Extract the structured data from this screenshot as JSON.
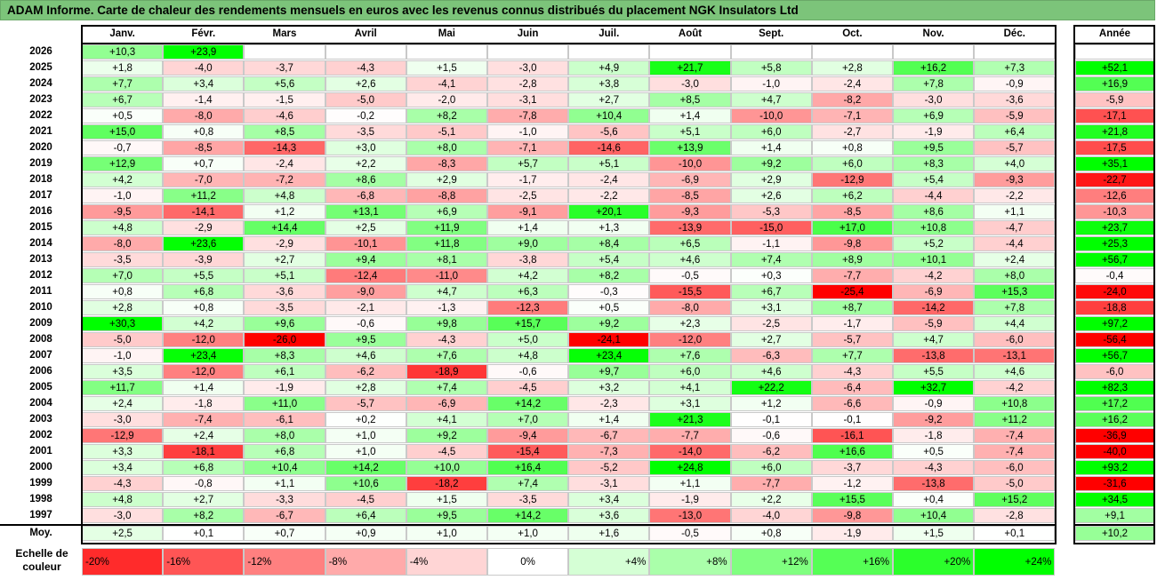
{
  "title": "ADAM Informe. Carte de chaleur des rendements mensuels en euros avec les revenus connus distribués du placement NGK Insulators Ltd",
  "chart_data": {
    "type": "heatmap",
    "months": [
      "Janv.",
      "Févr.",
      "Mars",
      "Avril",
      "Mai",
      "Juin",
      "Juil.",
      "Août",
      "Sept.",
      "Oct.",
      "Nov.",
      "Déc."
    ],
    "year_header": "Année",
    "unit": "%",
    "rows": [
      {
        "year": "2026",
        "months": [
          "+10,3",
          "+23,9",
          null,
          null,
          null,
          null,
          null,
          null,
          null,
          null,
          null,
          null
        ],
        "annual": null
      },
      {
        "year": "2025",
        "months": [
          "+1,8",
          "-4,0",
          "-3,7",
          "-4,3",
          "+1,5",
          "-3,0",
          "+4,9",
          "+21,7",
          "+5,8",
          "+2,8",
          "+16,2",
          "+7,3"
        ],
        "annual": "+52,1"
      },
      {
        "year": "2024",
        "months": [
          "+7,7",
          "+3,4",
          "+5,6",
          "+2,6",
          "-4,1",
          "-2,8",
          "+3,8",
          "-3,0",
          "-1,0",
          "-2,4",
          "+7,8",
          "-0,9"
        ],
        "annual": "+16,9"
      },
      {
        "year": "2023",
        "months": [
          "+6,7",
          "-1,4",
          "-1,5",
          "-5,0",
          "-2,0",
          "-3,1",
          "+2,7",
          "+8,5",
          "+4,7",
          "-8,2",
          "-3,0",
          "-3,6"
        ],
        "annual": "-5,9"
      },
      {
        "year": "2022",
        "months": [
          "+0,5",
          "-8,0",
          "-4,6",
          "-0,2",
          "+8,2",
          "-7,8",
          "+10,4",
          "+1,4",
          "-10,0",
          "-7,1",
          "+6,9",
          "-5,9"
        ],
        "annual": "-17,1"
      },
      {
        "year": "2021",
        "months": [
          "+15,0",
          "+0,8",
          "+8,5",
          "-3,5",
          "-5,1",
          "-1,0",
          "-5,6",
          "+5,1",
          "+6,0",
          "-2,7",
          "-1,9",
          "+6,4"
        ],
        "annual": "+21,8"
      },
      {
        "year": "2020",
        "months": [
          "-0,7",
          "-8,5",
          "-14,3",
          "+3,0",
          "+8,0",
          "-7,1",
          "-14,6",
          "+13,9",
          "+1,4",
          "+0,8",
          "+9,5",
          "-5,7"
        ],
        "annual": "-17,5"
      },
      {
        "year": "2019",
        "months": [
          "+12,9",
          "+0,7",
          "-2,4",
          "+2,2",
          "-8,3",
          "+5,7",
          "+5,1",
          "-10,0",
          "+9,2",
          "+6,0",
          "+8,3",
          "+4,0"
        ],
        "annual": "+35,1"
      },
      {
        "year": "2018",
        "months": [
          "+4,2",
          "-7,0",
          "-7,2",
          "+8,6",
          "+2,9",
          "-1,7",
          "-2,4",
          "-6,9",
          "+2,9",
          "-12,9",
          "+5,4",
          "-9,3"
        ],
        "annual": "-22,7"
      },
      {
        "year": "2017",
        "months": [
          "-1,0",
          "+11,2",
          "+4,8",
          "-6,8",
          "-8,8",
          "-2,5",
          "-2,2",
          "-8,5",
          "+2,6",
          "+6,2",
          "-4,4",
          "-2,2"
        ],
        "annual": "-12,6"
      },
      {
        "year": "2016",
        "months": [
          "-9,5",
          "-14,1",
          "+1,2",
          "+13,1",
          "+6,9",
          "-9,1",
          "+20,1",
          "-9,3",
          "-5,3",
          "-8,5",
          "+8,6",
          "+1,1"
        ],
        "annual": "-10,3"
      },
      {
        "year": "2015",
        "months": [
          "+4,8",
          "-2,9",
          "+14,4",
          "+2,5",
          "+11,9",
          "+1,4",
          "+1,3",
          "-13,9",
          "-15,0",
          "+17,0",
          "+10,8",
          "-4,7"
        ],
        "annual": "+23,7"
      },
      {
        "year": "2014",
        "months": [
          "-8,0",
          "+23,6",
          "-2,9",
          "-10,1",
          "+11,8",
          "+9,0",
          "+8,4",
          "+6,5",
          "-1,1",
          "-9,8",
          "+5,2",
          "-4,4"
        ],
        "annual": "+25,3"
      },
      {
        "year": "2013",
        "months": [
          "-3,5",
          "-3,9",
          "+2,7",
          "+9,4",
          "+8,1",
          "-3,8",
          "+5,4",
          "+4,6",
          "+7,4",
          "+8,9",
          "+10,1",
          "+2,4"
        ],
        "annual": "+56,7"
      },
      {
        "year": "2012",
        "months": [
          "+7,0",
          "+5,5",
          "+5,1",
          "-12,4",
          "-11,0",
          "+4,2",
          "+8,2",
          "-0,5",
          "+0,3",
          "-7,7",
          "-4,2",
          "+8,0"
        ],
        "annual": "-0,4"
      },
      {
        "year": "2011",
        "months": [
          "+0,8",
          "+6,8",
          "-3,6",
          "-9,0",
          "+4,7",
          "+6,3",
          "-0,3",
          "-15,5",
          "+6,7",
          "-25,4",
          "-6,9",
          "+15,3"
        ],
        "annual": "-24,0"
      },
      {
        "year": "2010",
        "months": [
          "+2,8",
          "+0,8",
          "-3,5",
          "-2,1",
          "-1,3",
          "-12,3",
          "+0,5",
          "-8,0",
          "+3,1",
          "+8,7",
          "-14,2",
          "+7,8"
        ],
        "annual": "-18,8"
      },
      {
        "year": "2009",
        "months": [
          "+30,3",
          "+4,2",
          "+9,6",
          "-0,6",
          "+9,8",
          "+15,7",
          "+9,2",
          "+2,3",
          "-2,5",
          "-1,7",
          "-5,9",
          "+4,4"
        ],
        "annual": "+97,2"
      },
      {
        "year": "2008",
        "months": [
          "-5,0",
          "-12,0",
          "-26,0",
          "+9,5",
          "-4,3",
          "+5,0",
          "-24,1",
          "-12,0",
          "+2,7",
          "-5,7",
          "+4,7",
          "-6,0"
        ],
        "annual": "-56,4"
      },
      {
        "year": "2007",
        "months": [
          "-1,0",
          "+23,4",
          "+8,3",
          "+4,6",
          "+7,6",
          "+4,8",
          "+23,4",
          "+7,6",
          "-6,3",
          "+7,7",
          "-13,8",
          "-13,1"
        ],
        "annual": "+56,7"
      },
      {
        "year": "2006",
        "months": [
          "+3,5",
          "-12,0",
          "+6,1",
          "-6,2",
          "-18,9",
          "-0,6",
          "+9,7",
          "+6,0",
          "+4,6",
          "-4,3",
          "+5,5",
          "+4,6"
        ],
        "annual": "-6,0"
      },
      {
        "year": "2005",
        "months": [
          "+11,7",
          "+1,4",
          "-1,9",
          "+2,8",
          "+7,4",
          "-4,5",
          "+3,2",
          "+4,1",
          "+22,2",
          "-6,4",
          "+32,7",
          "-4,2"
        ],
        "annual": "+82,3"
      },
      {
        "year": "2004",
        "months": [
          "+2,4",
          "-1,8",
          "+11,0",
          "-5,7",
          "-6,9",
          "+14,2",
          "-2,3",
          "+3,1",
          "+1,2",
          "-6,6",
          "-0,9",
          "+10,8"
        ],
        "annual": "+17,2"
      },
      {
        "year": "2003",
        "months": [
          "-3,0",
          "-7,4",
          "-6,1",
          "+0,2",
          "+4,1",
          "+7,0",
          "+1,4",
          "+21,3",
          "-0,1",
          "-0,1",
          "-9,2",
          "+11,2"
        ],
        "annual": "+16,2"
      },
      {
        "year": "2002",
        "months": [
          "-12,9",
          "+2,4",
          "+8,0",
          "+1,0",
          "+9,2",
          "-9,4",
          "-6,7",
          "-7,7",
          "-0,6",
          "-16,1",
          "-1,8",
          "-7,4"
        ],
        "annual": "-36,9"
      },
      {
        "year": "2001",
        "months": [
          "+3,3",
          "-18,1",
          "+6,8",
          "+1,0",
          "-4,5",
          "-15,4",
          "-7,3",
          "-14,0",
          "-6,2",
          "+16,6",
          "+0,5",
          "-7,4"
        ],
        "annual": "-40,0"
      },
      {
        "year": "2000",
        "months": [
          "+3,4",
          "+6,8",
          "+10,4",
          "+14,2",
          "+10,0",
          "+16,4",
          "-5,2",
          "+24,8",
          "+6,0",
          "-3,7",
          "-4,3",
          "-6,0"
        ],
        "annual": "+93,2"
      },
      {
        "year": "1999",
        "months": [
          "-4,3",
          "-0,8",
          "+1,1",
          "+10,6",
          "-18,2",
          "+7,4",
          "-3,1",
          "+1,1",
          "-7,7",
          "-1,2",
          "-13,8",
          "-5,0"
        ],
        "annual": "-31,6"
      },
      {
        "year": "1998",
        "months": [
          "+4,8",
          "+2,7",
          "-3,3",
          "-4,5",
          "+1,5",
          "-3,5",
          "+3,4",
          "-1,9",
          "+2,2",
          "+15,5",
          "+0,4",
          "+15,2"
        ],
        "annual": "+34,5"
      },
      {
        "year": "1997",
        "months": [
          "-3,0",
          "+8,2",
          "-6,7",
          "+6,4",
          "+9,5",
          "+14,2",
          "+3,6",
          "-13,0",
          "-4,0",
          "-9,8",
          "+10,4",
          "-2,8"
        ],
        "annual": "+9,1"
      }
    ],
    "average": {
      "label": "Moy.",
      "months": [
        "+2,5",
        "+0,1",
        "+0,7",
        "+0,9",
        "+1,0",
        "+1,0",
        "+1,6",
        "-0,5",
        "+0,8",
        "-1,9",
        "+1,5",
        "+0,1"
      ],
      "annual": "+10,2"
    },
    "legend": {
      "label": "Echelle de couleur",
      "items": [
        {
          "label": "-20%",
          "value": -20
        },
        {
          "label": "-16%",
          "value": -16
        },
        {
          "label": "-12%",
          "value": -12
        },
        {
          "label": "-8%",
          "value": -8
        },
        {
          "label": "-4%",
          "value": -4
        },
        {
          "label": "0%",
          "value": 0
        },
        {
          "label": "+4%",
          "value": 4
        },
        {
          "label": "+8%",
          "value": 8
        },
        {
          "label": "+12%",
          "value": 12
        },
        {
          "label": "+16%",
          "value": 16
        },
        {
          "label": "+20%",
          "value": 20
        },
        {
          "label": "+24%",
          "value": 24
        }
      ]
    },
    "colors": {
      "negative": "#ff0000",
      "neutral": "#ffffff",
      "positive": "#00ff00",
      "title_bg": "#7cc47a"
    }
  }
}
